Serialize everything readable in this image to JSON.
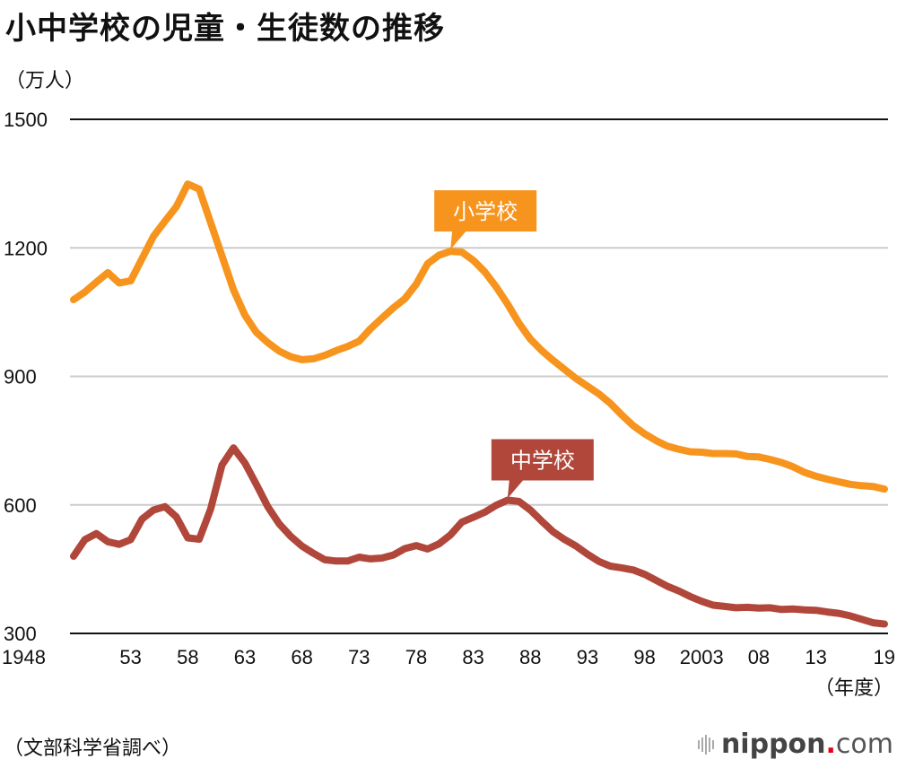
{
  "chart_data": {
    "type": "line",
    "title": "小中学校の児童・生徒数の推移",
    "ylabel": "（万人）",
    "xlabel": "（年度）",
    "source": "（文部科学省調べ）",
    "ylim": [
      300,
      1500
    ],
    "yticks": [
      300,
      600,
      900,
      1200,
      1500
    ],
    "ytick_labels": [
      "300",
      "600",
      "900",
      "1200",
      "1500"
    ],
    "xlim": [
      1948,
      2019
    ],
    "xticks": [
      1948,
      1953,
      1958,
      1963,
      1968,
      1973,
      1978,
      1983,
      1988,
      1993,
      1998,
      2003,
      2008,
      2013,
      2019
    ],
    "xtick_labels": [
      "1948",
      "53",
      "58",
      "63",
      "68",
      "73",
      "78",
      "83",
      "88",
      "93",
      "98",
      "2003",
      "08",
      "13",
      "19"
    ],
    "grid": true,
    "x": [
      1948,
      1949,
      1950,
      1951,
      1952,
      1953,
      1954,
      1955,
      1956,
      1957,
      1958,
      1959,
      1960,
      1961,
      1962,
      1963,
      1964,
      1965,
      1966,
      1967,
      1968,
      1969,
      1970,
      1971,
      1972,
      1973,
      1974,
      1975,
      1976,
      1977,
      1978,
      1979,
      1980,
      1981,
      1982,
      1983,
      1984,
      1985,
      1986,
      1987,
      1988,
      1989,
      1990,
      1991,
      1992,
      1993,
      1994,
      1995,
      1996,
      1997,
      1998,
      1999,
      2000,
      2001,
      2002,
      2003,
      2004,
      2005,
      2006,
      2007,
      2008,
      2009,
      2010,
      2011,
      2012,
      2013,
      2014,
      2015,
      2016,
      2017,
      2018,
      2019
    ],
    "series": [
      {
        "name": "小学校",
        "color": "#f7941d",
        "callout_year": 1981,
        "values": [
          1079,
          1097,
          1120,
          1142,
          1118,
          1123,
          1175,
          1227,
          1262,
          1296,
          1349,
          1337,
          1259,
          1181,
          1102,
          1043,
          1003,
          979,
          959,
          946,
          939,
          941,
          949,
          960,
          970,
          982,
          1011,
          1036,
          1060,
          1081,
          1115,
          1163,
          1183,
          1192,
          1190,
          1171,
          1144,
          1109,
          1069,
          1024,
          987,
          960,
          937,
          916,
          895,
          877,
          859,
          837,
          810,
          785,
          766,
          750,
          737,
          730,
          724,
          723,
          720,
          720,
          719,
          713,
          712,
          706,
          699,
          689,
          676,
          667,
          660,
          654,
          648,
          645,
          643,
          637
        ]
      },
      {
        "name": "中学校",
        "color": "#b0473a",
        "callout_year": 1986,
        "values": [
          480,
          519,
          533,
          514,
          508,
          519,
          567,
          588,
          596,
          572,
          523,
          520,
          590,
          693,
          733,
          698,
          648,
          596,
          556,
          527,
          504,
          487,
          472,
          469,
          469,
          478,
          474,
          476,
          483,
          498,
          505,
          497,
          509,
          530,
          560,
          571,
          583,
          599,
          611,
          608,
          588,
          562,
          537,
          519,
          504,
          485,
          468,
          457,
          453,
          448,
          438,
          424,
          410,
          399,
          386,
          375,
          366,
          363,
          360,
          361,
          359,
          360,
          356,
          357,
          355,
          354,
          350,
          347,
          341,
          333,
          325,
          322
        ]
      }
    ]
  },
  "footer": {
    "logo_main": "nippon",
    "logo_dot": ".",
    "logo_suffix": "com"
  }
}
